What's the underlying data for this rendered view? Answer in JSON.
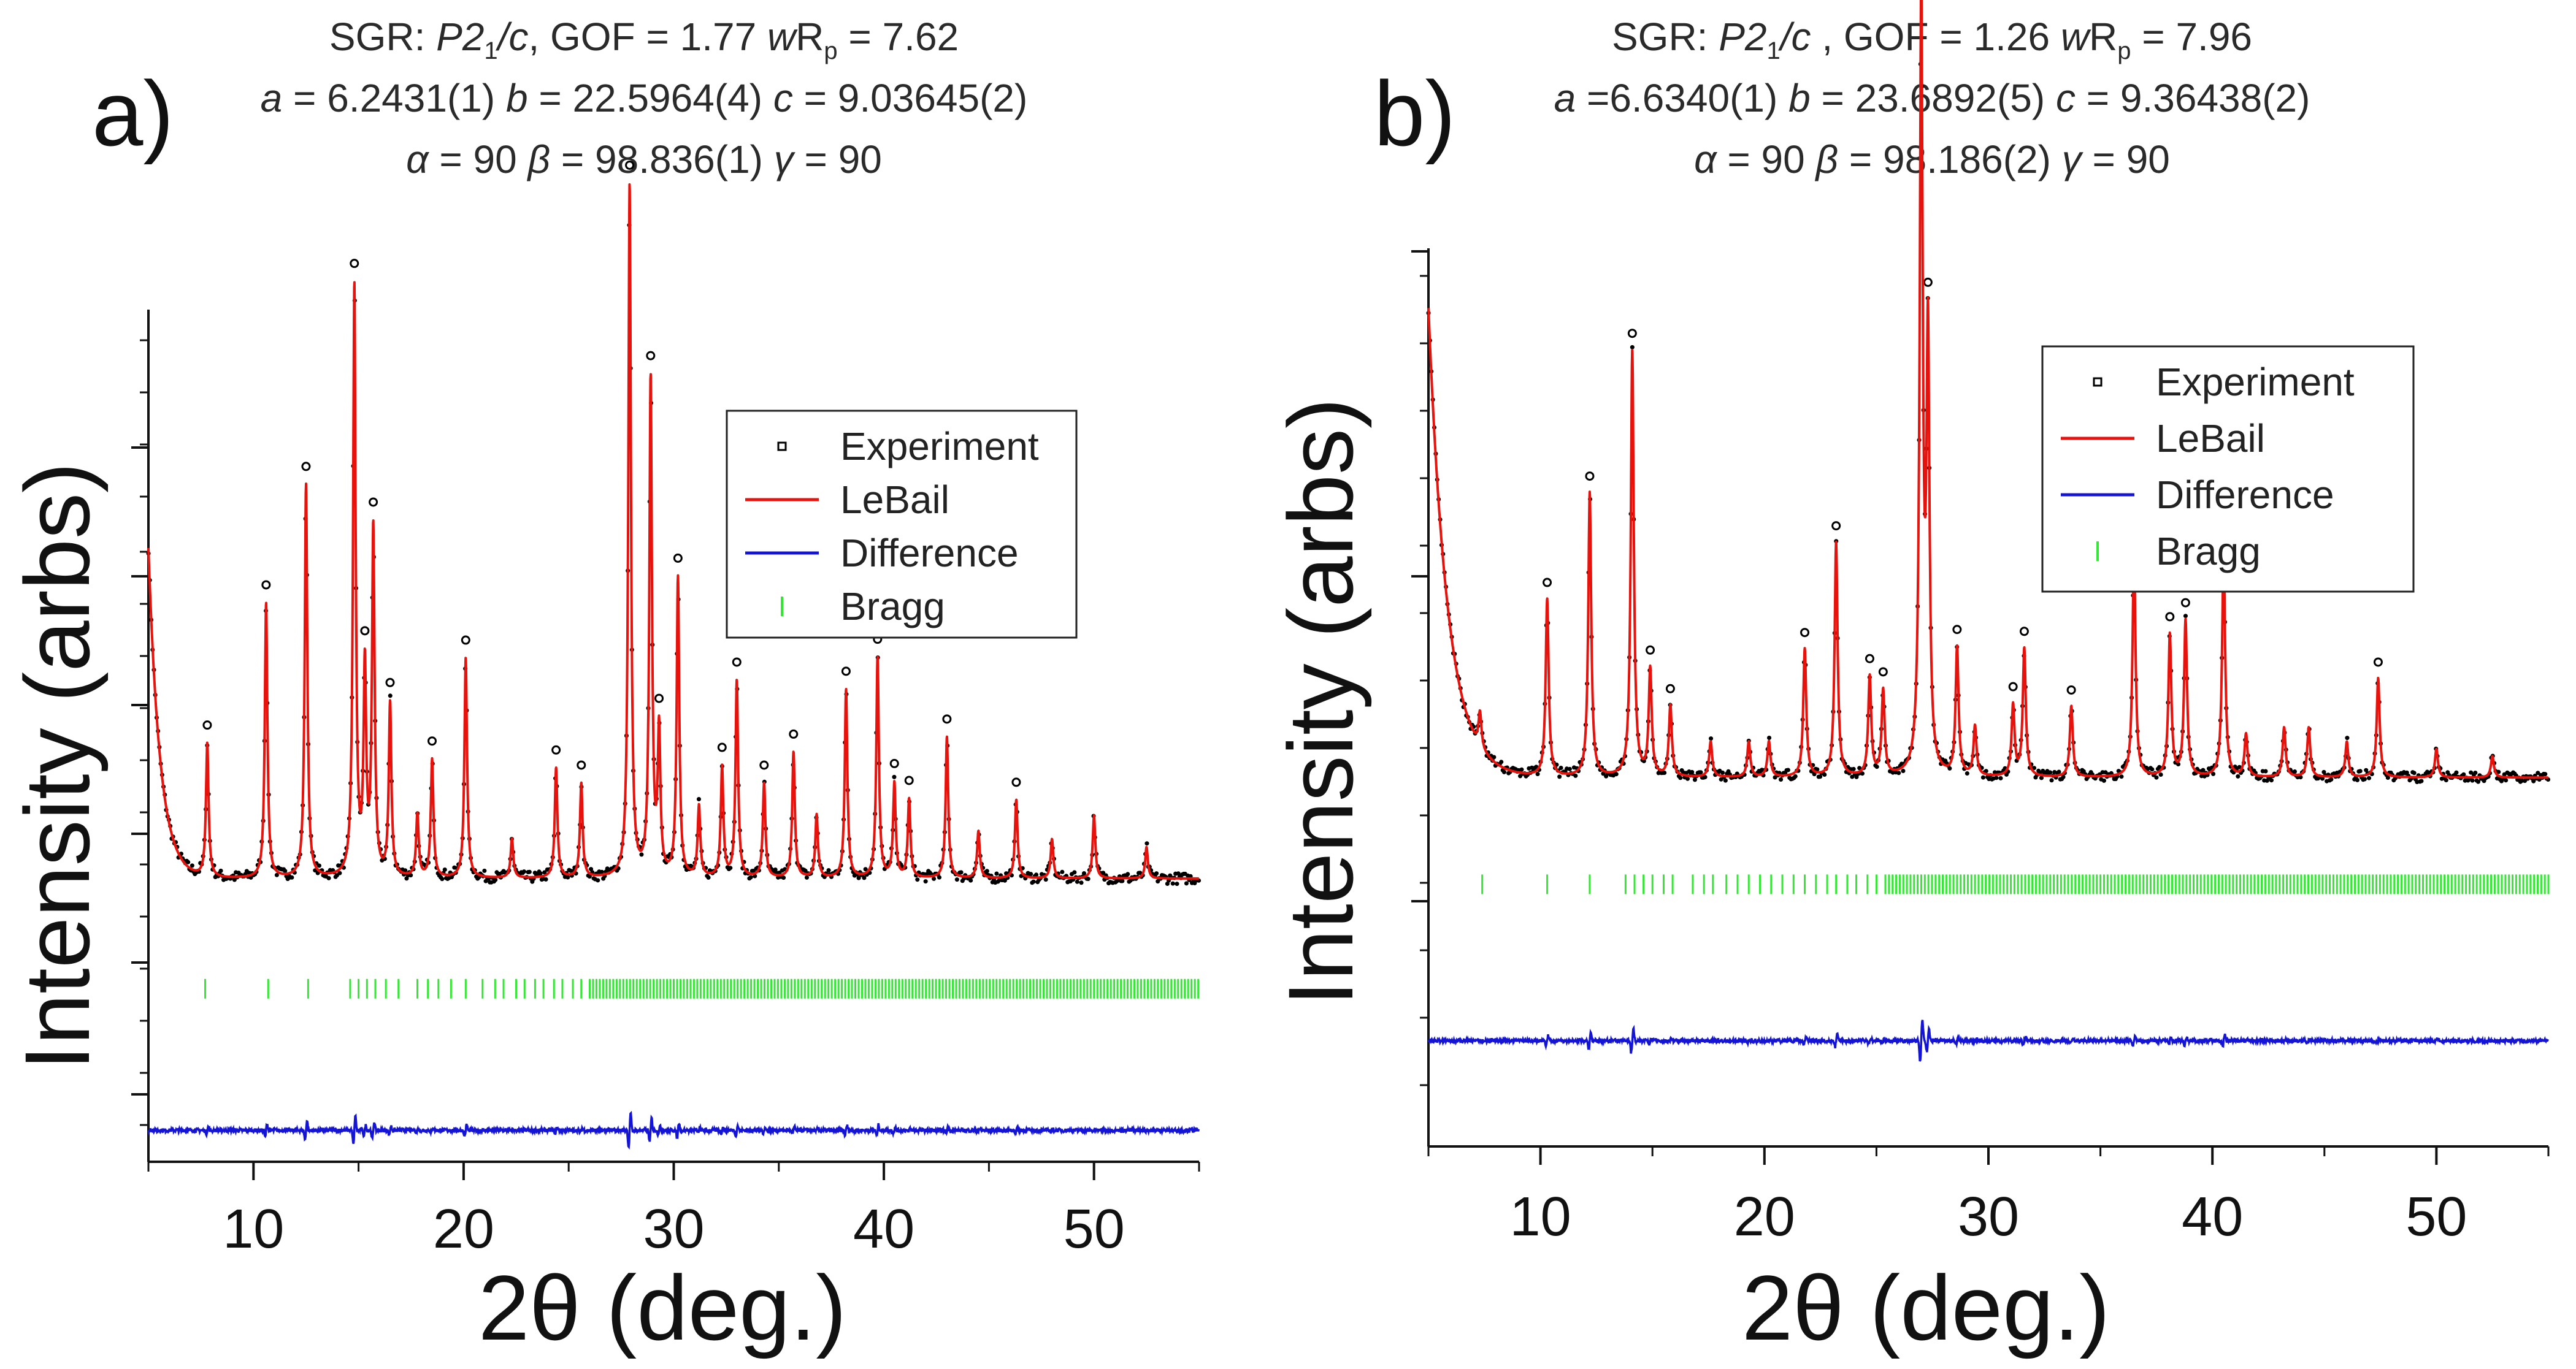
{
  "chart_data": [
    {
      "panel": "a)",
      "type": "line",
      "header": {
        "line1": {
          "prefix": "SGR: ",
          "sg_italic": "P2",
          "sg_sub": "1",
          "sg_tail": "/c",
          "rest": ", GOF = 1.77 ",
          "wr_italic": "w",
          "wr_r": "R",
          "wr_sub": "p",
          "wr_rest": " = 7.62"
        },
        "line2": {
          "a_sym": "a",
          "a_val": " = 6.2431(1) ",
          "b_sym": "b",
          "b_val": " = 22.5964(4) ",
          "c_sym": "c",
          "c_val": " = 9.03645(2)"
        },
        "line3": {
          "al_sym": "α",
          "al_val": " = 90 ",
          "be_sym": "β",
          "be_val": " = 98.836(1) ",
          "ga_sym": "γ",
          "ga_val": " = 90"
        }
      },
      "xlabel": "2θ (deg.)",
      "ylabel": "Intensity (arbs)",
      "xlim": [
        5,
        55
      ],
      "xticks": [
        10,
        20,
        30,
        40,
        50
      ],
      "ylim": [
        0,
        115
      ],
      "legend_placement": "right",
      "legend": {
        "experiment": "Experiment",
        "lebail": "LeBail",
        "difference": "Difference",
        "bragg": "Bragg"
      },
      "background": {
        "offset": 36,
        "amp": 42,
        "decay": 0.55,
        "x0": 5
      },
      "difference_baseline": 4,
      "bragg_row_y": 22,
      "peaks": [
        {
          "x": 7.8,
          "h": 17
        },
        {
          "x": 10.6,
          "h": 35
        },
        {
          "x": 12.5,
          "h": 50
        },
        {
          "x": 14.8,
          "h": 75
        },
        {
          "x": 15.3,
          "h": 26
        },
        {
          "x": 15.7,
          "h": 44
        },
        {
          "x": 16.5,
          "h": 22
        },
        {
          "x": 17.8,
          "h": 8
        },
        {
          "x": 18.5,
          "h": 15
        },
        {
          "x": 20.1,
          "h": 28
        },
        {
          "x": 22.3,
          "h": 5
        },
        {
          "x": 24.4,
          "h": 14
        },
        {
          "x": 25.6,
          "h": 12
        },
        {
          "x": 27.9,
          "h": 88
        },
        {
          "x": 28.9,
          "h": 63
        },
        {
          "x": 29.3,
          "h": 18
        },
        {
          "x": 30.2,
          "h": 38
        },
        {
          "x": 31.2,
          "h": 9
        },
        {
          "x": 32.3,
          "h": 14
        },
        {
          "x": 33.0,
          "h": 25
        },
        {
          "x": 34.3,
          "h": 12
        },
        {
          "x": 35.7,
          "h": 16
        },
        {
          "x": 36.8,
          "h": 8
        },
        {
          "x": 38.2,
          "h": 24
        },
        {
          "x": 39.7,
          "h": 28
        },
        {
          "x": 40.5,
          "h": 12
        },
        {
          "x": 41.2,
          "h": 10
        },
        {
          "x": 43.0,
          "h": 18
        },
        {
          "x": 44.5,
          "h": 6
        },
        {
          "x": 46.3,
          "h": 10
        },
        {
          "x": 48.0,
          "h": 5
        },
        {
          "x": 50.0,
          "h": 8
        },
        {
          "x": 52.5,
          "h": 4
        }
      ],
      "bragg_positions_sparse": [
        7.7,
        10.7,
        12.6,
        14.6,
        15.0,
        15.4,
        15.8,
        16.3,
        16.9,
        17.8,
        18.3,
        18.8,
        19.4,
        20.1,
        20.9,
        21.5,
        21.9,
        22.5,
        22.9,
        23.4,
        23.8,
        24.3,
        24.7,
        25.2,
        25.6
      ],
      "bragg_dense_range": [
        26.0,
        55.0
      ]
    },
    {
      "panel": "b)",
      "type": "line",
      "header": {
        "line1": {
          "prefix": "SGR: ",
          "sg_italic": "P2",
          "sg_sub": "1",
          "sg_tail": "/c",
          "rest": " , GOF = 1.26 ",
          "wr_italic": "w",
          "wr_r": "R",
          "wr_sub": "p",
          "wr_rest": " = 7.96"
        },
        "line2": {
          "a_sym": "a",
          "a_val": " =6.6340(1) ",
          "b_sym": "b",
          "b_val": " = 23.6892(5) ",
          "c_sym": "c",
          "c_val": " = 9.36438(2)"
        },
        "line3": {
          "al_sym": "α",
          "al_val": " = 90 ",
          "be_sym": "β",
          "be_val": " = 98.186(2) ",
          "ga_sym": "γ",
          "ga_val": " = 90"
        }
      },
      "xlabel": "2θ (deg.)",
      "ylabel": "Intensity (arbs)",
      "xlim": [
        5,
        55
      ],
      "xticks": [
        10,
        20,
        30,
        40,
        50
      ],
      "ylim": [
        0,
        120
      ],
      "legend_placement": "top-right",
      "legend": {
        "experiment": "Experiment",
        "lebail": "LeBail",
        "difference": "Difference",
        "bragg": "Bragg"
      },
      "background": {
        "offset": 51,
        "amp": 66,
        "decay": 0.85,
        "x0": 5
      },
      "difference_baseline": 14,
      "bragg_row_y": 36,
      "peaks": [
        {
          "x": 7.3,
          "h": 5
        },
        {
          "x": 10.3,
          "h": 25
        },
        {
          "x": 12.2,
          "h": 40
        },
        {
          "x": 14.1,
          "h": 60
        },
        {
          "x": 14.9,
          "h": 15
        },
        {
          "x": 15.8,
          "h": 10
        },
        {
          "x": 17.6,
          "h": 5
        },
        {
          "x": 19.3,
          "h": 5
        },
        {
          "x": 20.2,
          "h": 5
        },
        {
          "x": 21.8,
          "h": 18
        },
        {
          "x": 23.2,
          "h": 33
        },
        {
          "x": 24.7,
          "h": 14
        },
        {
          "x": 25.3,
          "h": 12
        },
        {
          "x": 27.0,
          "h": 110
        },
        {
          "x": 27.3,
          "h": 60
        },
        {
          "x": 28.6,
          "h": 18
        },
        {
          "x": 29.4,
          "h": 7
        },
        {
          "x": 31.1,
          "h": 10
        },
        {
          "x": 31.6,
          "h": 18
        },
        {
          "x": 33.7,
          "h": 10
        },
        {
          "x": 36.5,
          "h": 32
        },
        {
          "x": 38.1,
          "h": 20
        },
        {
          "x": 38.8,
          "h": 22
        },
        {
          "x": 40.5,
          "h": 32
        },
        {
          "x": 41.5,
          "h": 6
        },
        {
          "x": 43.2,
          "h": 7
        },
        {
          "x": 44.3,
          "h": 7
        },
        {
          "x": 46.0,
          "h": 5
        },
        {
          "x": 47.4,
          "h": 14
        },
        {
          "x": 50.0,
          "h": 4
        },
        {
          "x": 52.5,
          "h": 3
        }
      ],
      "bragg_positions_sparse": [
        7.4,
        10.3,
        12.2,
        13.8,
        14.2,
        14.6,
        15.0,
        15.5,
        15.9,
        16.8,
        17.3,
        17.7,
        18.3,
        18.8,
        19.3,
        19.8,
        20.3,
        20.8,
        21.3,
        21.8,
        22.3,
        22.8,
        23.2,
        23.7,
        24.1,
        24.6,
        25.0
      ],
      "bragg_dense_range": [
        25.4,
        55.0
      ]
    }
  ],
  "colors": {
    "experiment": "#000000",
    "lebail": "#e8120c",
    "difference": "#1414d6",
    "bragg": "#33e833",
    "axis": "#111111"
  }
}
